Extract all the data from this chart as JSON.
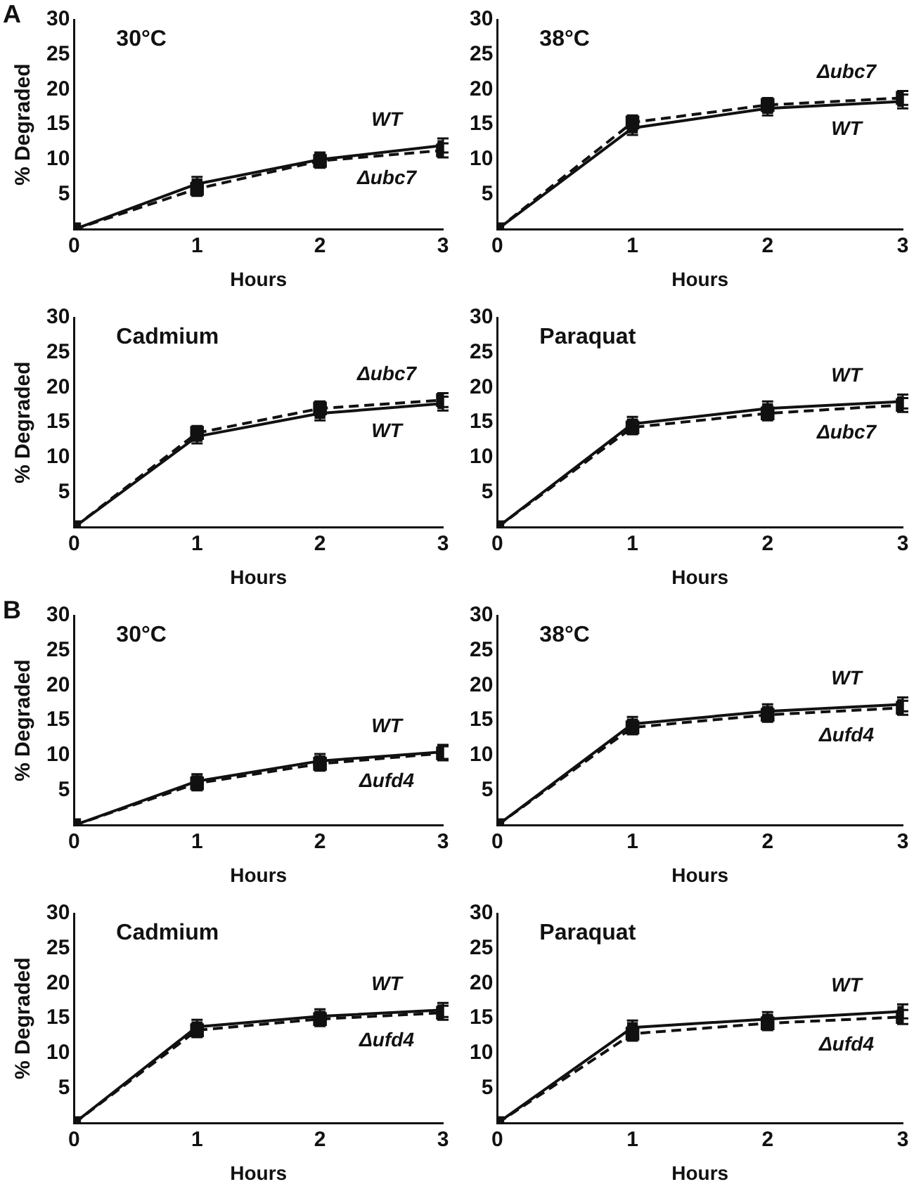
{
  "chart_data": [
    {
      "type": "line",
      "title": "30°C",
      "annotations": [
        "A"
      ],
      "xlabel": "Hours",
      "ylabel": "% Degraded",
      "x": [
        0,
        1,
        2,
        3
      ],
      "xlim": [
        0,
        3
      ],
      "xticks": [
        0,
        1,
        2,
        3
      ],
      "ylim": [
        0,
        30
      ],
      "yticks": [
        5,
        10,
        15,
        20,
        25,
        30
      ],
      "marker": "square",
      "series": [
        {
          "name": "WT",
          "color": "#111111",
          "line_style": "solid",
          "values": [
            0,
            6.5,
            10,
            12
          ],
          "errors": [
            null,
            1,
            1,
            1
          ]
        },
        {
          "name": "Δubc7",
          "color": "#111111",
          "line_style": "dashed",
          "values": [
            0,
            5.8,
            9.8,
            11.3
          ],
          "errors": [
            null,
            1,
            1,
            1
          ]
        }
      ]
    },
    {
      "type": "line",
      "title": "38°C",
      "xlabel": "Hours",
      "x": [
        0,
        1,
        2,
        3
      ],
      "xlim": [
        0,
        3
      ],
      "xticks": [
        0,
        1,
        2,
        3
      ],
      "ylim": [
        0,
        30
      ],
      "yticks": [
        5,
        10,
        15,
        20,
        25,
        30
      ],
      "marker": "square",
      "series": [
        {
          "name": "WT",
          "color": "#111111",
          "line_style": "solid",
          "values": [
            0,
            14.5,
            17.3,
            18.3
          ],
          "errors": [
            null,
            1,
            1,
            1
          ]
        },
        {
          "name": "Δubc7",
          "color": "#111111",
          "line_style": "dashed",
          "values": [
            0,
            15.3,
            17.8,
            18.8
          ],
          "errors": [
            null,
            1,
            1,
            1
          ]
        }
      ]
    },
    {
      "type": "line",
      "title": "Cadmium",
      "xlabel": "Hours",
      "ylabel": "% Degraded",
      "x": [
        0,
        1,
        2,
        3
      ],
      "xlim": [
        0,
        3
      ],
      "xticks": [
        0,
        1,
        2,
        3
      ],
      "ylim": [
        0,
        30
      ],
      "yticks": [
        5,
        10,
        15,
        20,
        25,
        30
      ],
      "marker": "square",
      "series": [
        {
          "name": "WT",
          "color": "#111111",
          "line_style": "solid",
          "values": [
            0,
            13,
            16.3,
            17.7
          ],
          "errors": [
            null,
            1,
            1,
            1
          ]
        },
        {
          "name": "Δubc7",
          "color": "#111111",
          "line_style": "dashed",
          "values": [
            0,
            13.5,
            17,
            18.2
          ],
          "errors": [
            null,
            1,
            1,
            1
          ]
        }
      ]
    },
    {
      "type": "line",
      "title": "Paraquat",
      "xlabel": "Hours",
      "x": [
        0,
        1,
        2,
        3
      ],
      "xlim": [
        0,
        3
      ],
      "xticks": [
        0,
        1,
        2,
        3
      ],
      "ylim": [
        0,
        30
      ],
      "yticks": [
        5,
        10,
        15,
        20,
        25,
        30
      ],
      "marker": "square",
      "series": [
        {
          "name": "WT",
          "color": "#111111",
          "line_style": "solid",
          "values": [
            0,
            14.8,
            17,
            18
          ],
          "errors": [
            null,
            1,
            1,
            1
          ]
        },
        {
          "name": "Δubc7",
          "color": "#111111",
          "line_style": "dashed",
          "values": [
            0,
            14.3,
            16.3,
            17.5
          ],
          "errors": [
            null,
            1,
            1,
            1
          ]
        }
      ]
    },
    {
      "type": "line",
      "title": "30°C",
      "annotations": [
        "B"
      ],
      "xlabel": "Hours",
      "ylabel": "% Degraded",
      "x": [
        0,
        1,
        2,
        3
      ],
      "xlim": [
        0,
        3
      ],
      "xticks": [
        0,
        1,
        2,
        3
      ],
      "ylim": [
        0,
        30
      ],
      "yticks": [
        5,
        10,
        15,
        20,
        25,
        30
      ],
      "marker": "square",
      "series": [
        {
          "name": "WT",
          "color": "#111111",
          "line_style": "solid",
          "values": [
            0,
            6.3,
            9.2,
            10.5
          ],
          "errors": [
            null,
            1,
            1,
            1
          ]
        },
        {
          "name": "Δufd4",
          "color": "#111111",
          "line_style": "dashed",
          "values": [
            0,
            6,
            8.8,
            10.3
          ],
          "errors": [
            null,
            1,
            1,
            1
          ]
        }
      ]
    },
    {
      "type": "line",
      "title": "38°C",
      "xlabel": "Hours",
      "x": [
        0,
        1,
        2,
        3
      ],
      "xlim": [
        0,
        3
      ],
      "xticks": [
        0,
        1,
        2,
        3
      ],
      "ylim": [
        0,
        30
      ],
      "yticks": [
        5,
        10,
        15,
        20,
        25,
        30
      ],
      "marker": "square",
      "series": [
        {
          "name": "WT",
          "color": "#111111",
          "line_style": "solid",
          "values": [
            0,
            14.5,
            16.3,
            17.3
          ],
          "errors": [
            null,
            1,
            1,
            1
          ]
        },
        {
          "name": "Δufd4",
          "color": "#111111",
          "line_style": "dashed",
          "values": [
            0,
            14,
            15.8,
            16.8
          ],
          "errors": [
            null,
            1,
            1,
            1
          ]
        }
      ]
    },
    {
      "type": "line",
      "title": "Cadmium",
      "xlabel": "Hours",
      "ylabel": "% Degraded",
      "x": [
        0,
        1,
        2,
        3
      ],
      "xlim": [
        0,
        3
      ],
      "xticks": [
        0,
        1,
        2,
        3
      ],
      "ylim": [
        0,
        30
      ],
      "yticks": [
        5,
        10,
        15,
        20,
        25,
        30
      ],
      "marker": "square",
      "series": [
        {
          "name": "WT",
          "color": "#111111",
          "line_style": "solid",
          "values": [
            0,
            13.8,
            15.3,
            16.2
          ],
          "errors": [
            null,
            1,
            1,
            1
          ]
        },
        {
          "name": "Δufd4",
          "color": "#111111",
          "line_style": "dashed",
          "values": [
            0,
            13.3,
            14.9,
            15.8
          ],
          "errors": [
            null,
            1,
            1,
            1
          ]
        }
      ]
    },
    {
      "type": "line",
      "title": "Paraquat",
      "xlabel": "Hours",
      "x": [
        0,
        1,
        2,
        3
      ],
      "xlim": [
        0,
        3
      ],
      "xticks": [
        0,
        1,
        2,
        3
      ],
      "ylim": [
        0,
        30
      ],
      "yticks": [
        5,
        10,
        15,
        20,
        25,
        30
      ],
      "marker": "square",
      "series": [
        {
          "name": "WT",
          "color": "#111111",
          "line_style": "solid",
          "values": [
            0,
            13.7,
            14.9,
            16
          ],
          "errors": [
            null,
            1,
            1,
            1
          ]
        },
        {
          "name": "Δufd4",
          "color": "#111111",
          "line_style": "dashed",
          "values": [
            0,
            12.8,
            14.3,
            15.2
          ],
          "errors": [
            null,
            1,
            1,
            1
          ]
        }
      ]
    }
  ]
}
